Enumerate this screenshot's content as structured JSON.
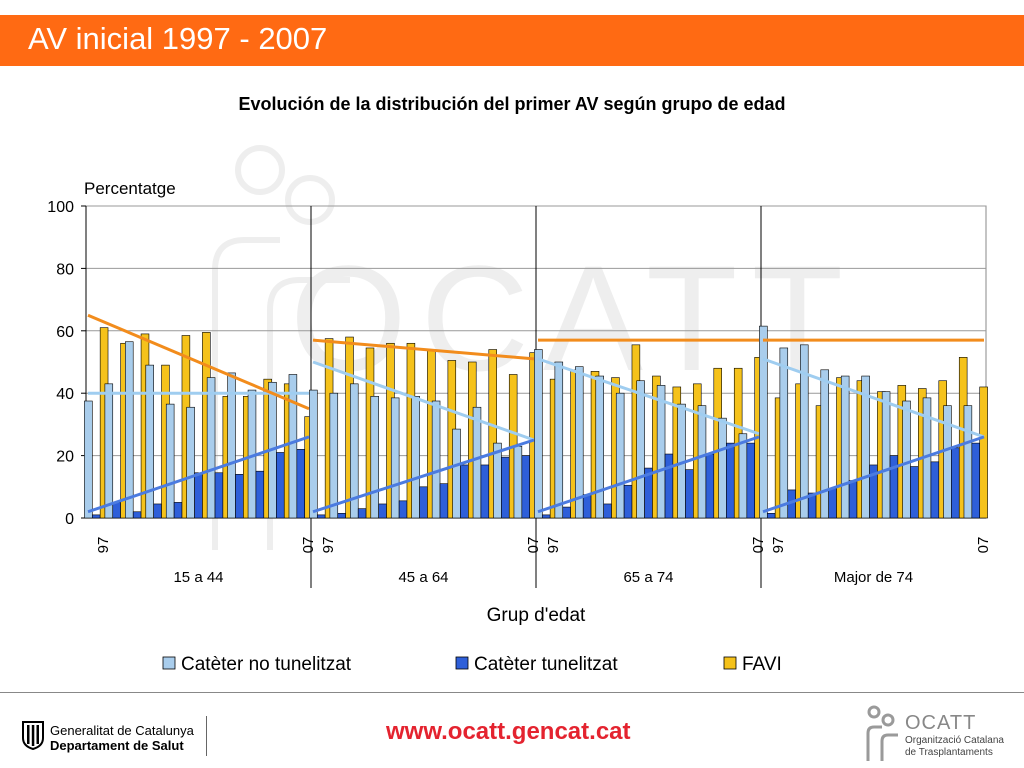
{
  "header": {
    "title": "AV inicial 1997 - 2007",
    "color": "#ff6a13"
  },
  "watermark": {
    "text": "OCATT"
  },
  "chart_data": {
    "type": "bar",
    "title": "Evolución de la distribución del primer AV según grupo de edad",
    "ylabel": "Percentatge",
    "xlabel": "Grup d'edat",
    "ylim": [
      0,
      100
    ],
    "yticks": [
      0,
      20,
      40,
      60,
      80,
      100
    ],
    "grid": true,
    "legend_position": "bottom",
    "groups": [
      {
        "label": "15 a 44",
        "tick_start": "97",
        "tick_end": "07",
        "series": [
          {
            "values": [
              37.5,
              43,
              56.5,
              49,
              36.5,
              35.5,
              45,
              46.5,
              41,
              43.5,
              46
            ]
          },
          {
            "values": [
              1,
              5,
              2,
              4.5,
              5,
              14.5,
              14.5,
              14,
              15,
              21,
              22
            ]
          },
          {
            "values": [
              61,
              56,
              59,
              49,
              58.5,
              59.5,
              39,
              39,
              44.5,
              43,
              32.5
            ]
          }
        ],
        "trends": [
          {
            "series": 0,
            "from": 40,
            "to": 40
          },
          {
            "series": 1,
            "from": 2,
            "to": 26
          },
          {
            "series": 2,
            "from": 65,
            "to": 35
          }
        ]
      },
      {
        "label": "45 a 64",
        "tick_start": "97",
        "tick_end": "07",
        "series": [
          {
            "values": [
              41,
              40,
              43,
              39,
              38.5,
              39,
              37.5,
              28.5,
              35.5,
              24,
              23
            ]
          },
          {
            "values": [
              1,
              1.5,
              3,
              4.5,
              5.5,
              10,
              11,
              17,
              17,
              19.5,
              20
            ]
          },
          {
            "values": [
              57.5,
              58,
              54.5,
              56,
              56,
              54,
              50.5,
              50,
              54,
              46,
              53
            ]
          }
        ],
        "trends": [
          {
            "series": 0,
            "from": 50,
            "to": 25
          },
          {
            "series": 1,
            "from": 2,
            "to": 25
          },
          {
            "series": 2,
            "from": 57,
            "to": 51
          }
        ]
      },
      {
        "label": "65 a 74",
        "tick_start": "97",
        "tick_end": "07",
        "series": [
          {
            "values": [
              54,
              50,
              48.5,
              45.5,
              40,
              44,
              42.5,
              36.5,
              36,
              32,
              27
            ]
          },
          {
            "values": [
              1,
              3.5,
              7.5,
              4.5,
              10.5,
              16,
              20.5,
              15.5,
              20.5,
              24,
              24
            ]
          },
          {
            "values": [
              44.5,
              47.5,
              47,
              45,
              55.5,
              45.5,
              42,
              43,
              48,
              48,
              51.5
            ]
          }
        ],
        "trends": [
          {
            "series": 0,
            "from": 51,
            "to": 27
          },
          {
            "series": 1,
            "from": 2,
            "to": 26
          },
          {
            "series": 2,
            "from": 57,
            "to": 57
          }
        ]
      },
      {
        "label": "Major de 74",
        "tick_start": "97",
        "tick_end": "07",
        "series": [
          {
            "values": [
              61.5,
              54.5,
              55.5,
              47.5,
              45.5,
              45.5,
              40.5,
              37.5,
              38.5,
              36,
              36
            ]
          },
          {
            "values": [
              1.5,
              9,
              8,
              9.5,
              12,
              17,
              20,
              16.5,
              18,
              22.5,
              24
            ]
          },
          {
            "values": [
              38.5,
              43,
              36,
              45,
              44,
              40.5,
              42.5,
              41.5,
              44,
              51.5,
              42
            ]
          }
        ],
        "trends": [
          {
            "series": 0,
            "from": 51,
            "to": 26
          },
          {
            "series": 1,
            "from": 2,
            "to": 26
          },
          {
            "series": 2,
            "from": 57,
            "to": 57
          }
        ]
      }
    ],
    "series_names": [
      "Catèter no tunelitzat",
      "Catèter tunelitzat",
      "FAVI"
    ],
    "series_colors": [
      "#a9cdec",
      "#2e5fd9",
      "#f5c21b"
    ],
    "trend_colors": [
      "#9fcdf0",
      "#4b7be0",
      "#f28c1c"
    ]
  },
  "footer": {
    "gencat_line1": "Generalitat de Catalunya",
    "gencat_line2": "Departament de Salut",
    "website": "www.ocatt.gencat.cat",
    "ocatt_name": "OCATT",
    "ocatt_line1": "Organització Catalana",
    "ocatt_line2": "de Trasplantaments"
  }
}
